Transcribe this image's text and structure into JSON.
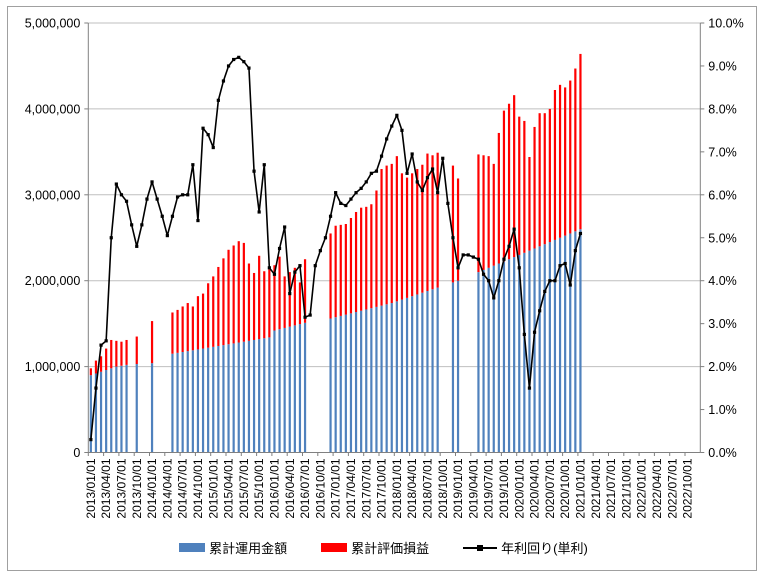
{
  "chart_data": {
    "type": "bar",
    "subtype": "stacked-bar-with-line-combo",
    "title": "",
    "x_start_month": "2013/01",
    "x_axis_total_months": 120,
    "data_months": 97,
    "x_tick_labels": [
      "2013/01/01",
      "2013/04/01",
      "2013/07/01",
      "2013/10/01",
      "2014/01/01",
      "2014/04/01",
      "2014/07/01",
      "2014/10/01",
      "2015/01/01",
      "2015/04/01",
      "2015/07/01",
      "2015/10/01",
      "2016/01/01",
      "2016/04/01",
      "2016/07/01",
      "2016/10/01",
      "2017/01/01",
      "2017/04/01",
      "2017/07/01",
      "2017/10/01",
      "2018/01/01",
      "2018/04/01",
      "2018/07/01",
      "2018/10/01",
      "2019/01/01",
      "2019/04/01",
      "2019/07/01",
      "2019/10/01",
      "2020/01/01",
      "2020/04/01",
      "2020/07/01",
      "2020/10/01",
      "2021/01/01",
      "2021/04/01",
      "2021/07/01",
      "2021/10/01",
      "2022/01/01",
      "2022/04/01",
      "2022/07/01",
      "2022/10/01"
    ],
    "left_axis": {
      "min": 0,
      "max": 5000000,
      "step": 1000000,
      "labels": [
        "0",
        "1,000,000",
        "2,000,000",
        "3,000,000",
        "4,000,000",
        "5,000,000"
      ]
    },
    "right_axis": {
      "min": 0,
      "max": 10,
      "step": 1,
      "labels": [
        "0.0%",
        "1.0%",
        "2.0%",
        "3.0%",
        "4.0%",
        "5.0%",
        "6.0%",
        "7.0%",
        "8.0%",
        "9.0%",
        "10.0%"
      ]
    },
    "grid": "horizontal-only",
    "legend_position": "bottom-center",
    "series": [
      {
        "name": "累計運用金額",
        "type": "bar",
        "stack": true,
        "color": "#4f81bd",
        "axis": "left",
        "values": [
          900000,
          920000,
          940000,
          960000,
          980000,
          1000000,
          1010000,
          1020000,
          null,
          1030000,
          null,
          null,
          1040000,
          null,
          null,
          null,
          1150000,
          1160000,
          1170000,
          1180000,
          1190000,
          1200000,
          1210000,
          1220000,
          1230000,
          1240000,
          1250000,
          1260000,
          1270000,
          1280000,
          1290000,
          1300000,
          1310000,
          1320000,
          1330000,
          1340000,
          1420000,
          1435000,
          1450000,
          1465000,
          1480000,
          1495000,
          1510000,
          null,
          null,
          null,
          null,
          1560000,
          1575000,
          1590000,
          1605000,
          1620000,
          1635000,
          1650000,
          1665000,
          1680000,
          1695000,
          1710000,
          1725000,
          1740000,
          1760000,
          1780000,
          1800000,
          1820000,
          1840000,
          1860000,
          1880000,
          1900000,
          1920000,
          null,
          null,
          1980000,
          2000000,
          null,
          null,
          null,
          2100000,
          2125000,
          2150000,
          2175000,
          2200000,
          2225000,
          2250000,
          2275000,
          2300000,
          2325000,
          2350000,
          2375000,
          2400000,
          2425000,
          2450000,
          2475000,
          2500000,
          2525000,
          2550000,
          2575000,
          2600000
        ]
      },
      {
        "name": "累計評価損益",
        "type": "bar",
        "stack": true,
        "color": "#ff0000",
        "axis": "left",
        "values": [
          80000,
          150000,
          180000,
          250000,
          330000,
          300000,
          280000,
          290000,
          null,
          320000,
          null,
          null,
          490000,
          null,
          null,
          null,
          480000,
          500000,
          530000,
          560000,
          510000,
          620000,
          640000,
          750000,
          820000,
          920000,
          1010000,
          1100000,
          1140000,
          1180000,
          1150000,
          900000,
          780000,
          970000,
          780000,
          790000,
          760000,
          845000,
          600000,
          635000,
          670000,
          485000,
          740000,
          null,
          null,
          null,
          null,
          990000,
          1065000,
          1060000,
          1055000,
          1110000,
          1165000,
          1200000,
          1195000,
          1210000,
          1355000,
          1590000,
          1615000,
          1620000,
          1690000,
          1470000,
          1400000,
          1430000,
          1460000,
          1490000,
          1600000,
          1560000,
          1570000,
          null,
          null,
          1360000,
          1190000,
          null,
          null,
          null,
          1370000,
          1335000,
          1300000,
          1185000,
          1520000,
          1755000,
          1810000,
          1885000,
          1610000,
          1535000,
          1090000,
          1415000,
          1550000,
          1525000,
          1550000,
          1745000,
          1780000,
          1725000,
          1780000,
          1895000,
          2040000
        ]
      },
      {
        "name": "年利回り(単利)",
        "type": "line",
        "color": "#000000",
        "marker": "square",
        "axis": "right",
        "values": [
          0.3,
          1.5,
          2.5,
          2.6,
          5.0,
          6.25,
          6.0,
          5.85,
          5.3,
          4.8,
          5.3,
          5.9,
          6.3,
          5.9,
          5.5,
          5.05,
          5.5,
          5.95,
          6.0,
          6.0,
          6.7,
          5.4,
          7.55,
          7.4,
          7.1,
          8.2,
          8.65,
          9.0,
          9.15,
          9.2,
          9.1,
          8.95,
          6.55,
          5.6,
          6.7,
          4.3,
          4.15,
          4.75,
          5.25,
          3.7,
          4.2,
          4.35,
          3.15,
          3.2,
          4.35,
          4.7,
          5.0,
          5.5,
          6.05,
          5.8,
          5.75,
          5.9,
          6.05,
          6.15,
          6.3,
          6.5,
          6.55,
          6.9,
          7.3,
          7.6,
          7.85,
          7.5,
          6.5,
          6.95,
          6.3,
          6.1,
          6.4,
          6.6,
          6.05,
          6.85,
          5.8,
          5.0,
          4.3,
          4.6,
          4.6,
          4.55,
          4.5,
          4.15,
          4.0,
          3.6,
          4.0,
          4.5,
          4.8,
          5.2,
          4.3,
          2.75,
          1.5,
          2.8,
          3.3,
          3.75,
          4.0,
          4.0,
          4.35,
          4.4,
          3.9,
          4.7,
          5.1
        ]
      }
    ]
  },
  "legend": {
    "item1": "累計運用金額",
    "item2": "累計評価損益",
    "item3": "年利回り(単利)"
  },
  "colors": {
    "bar_principal": "#4f81bd",
    "bar_gain": "#ff0000",
    "line_yield": "#000000",
    "gridline": "#bfbfbf",
    "axis": "#808080",
    "frame_border": "#a0a0a0"
  }
}
